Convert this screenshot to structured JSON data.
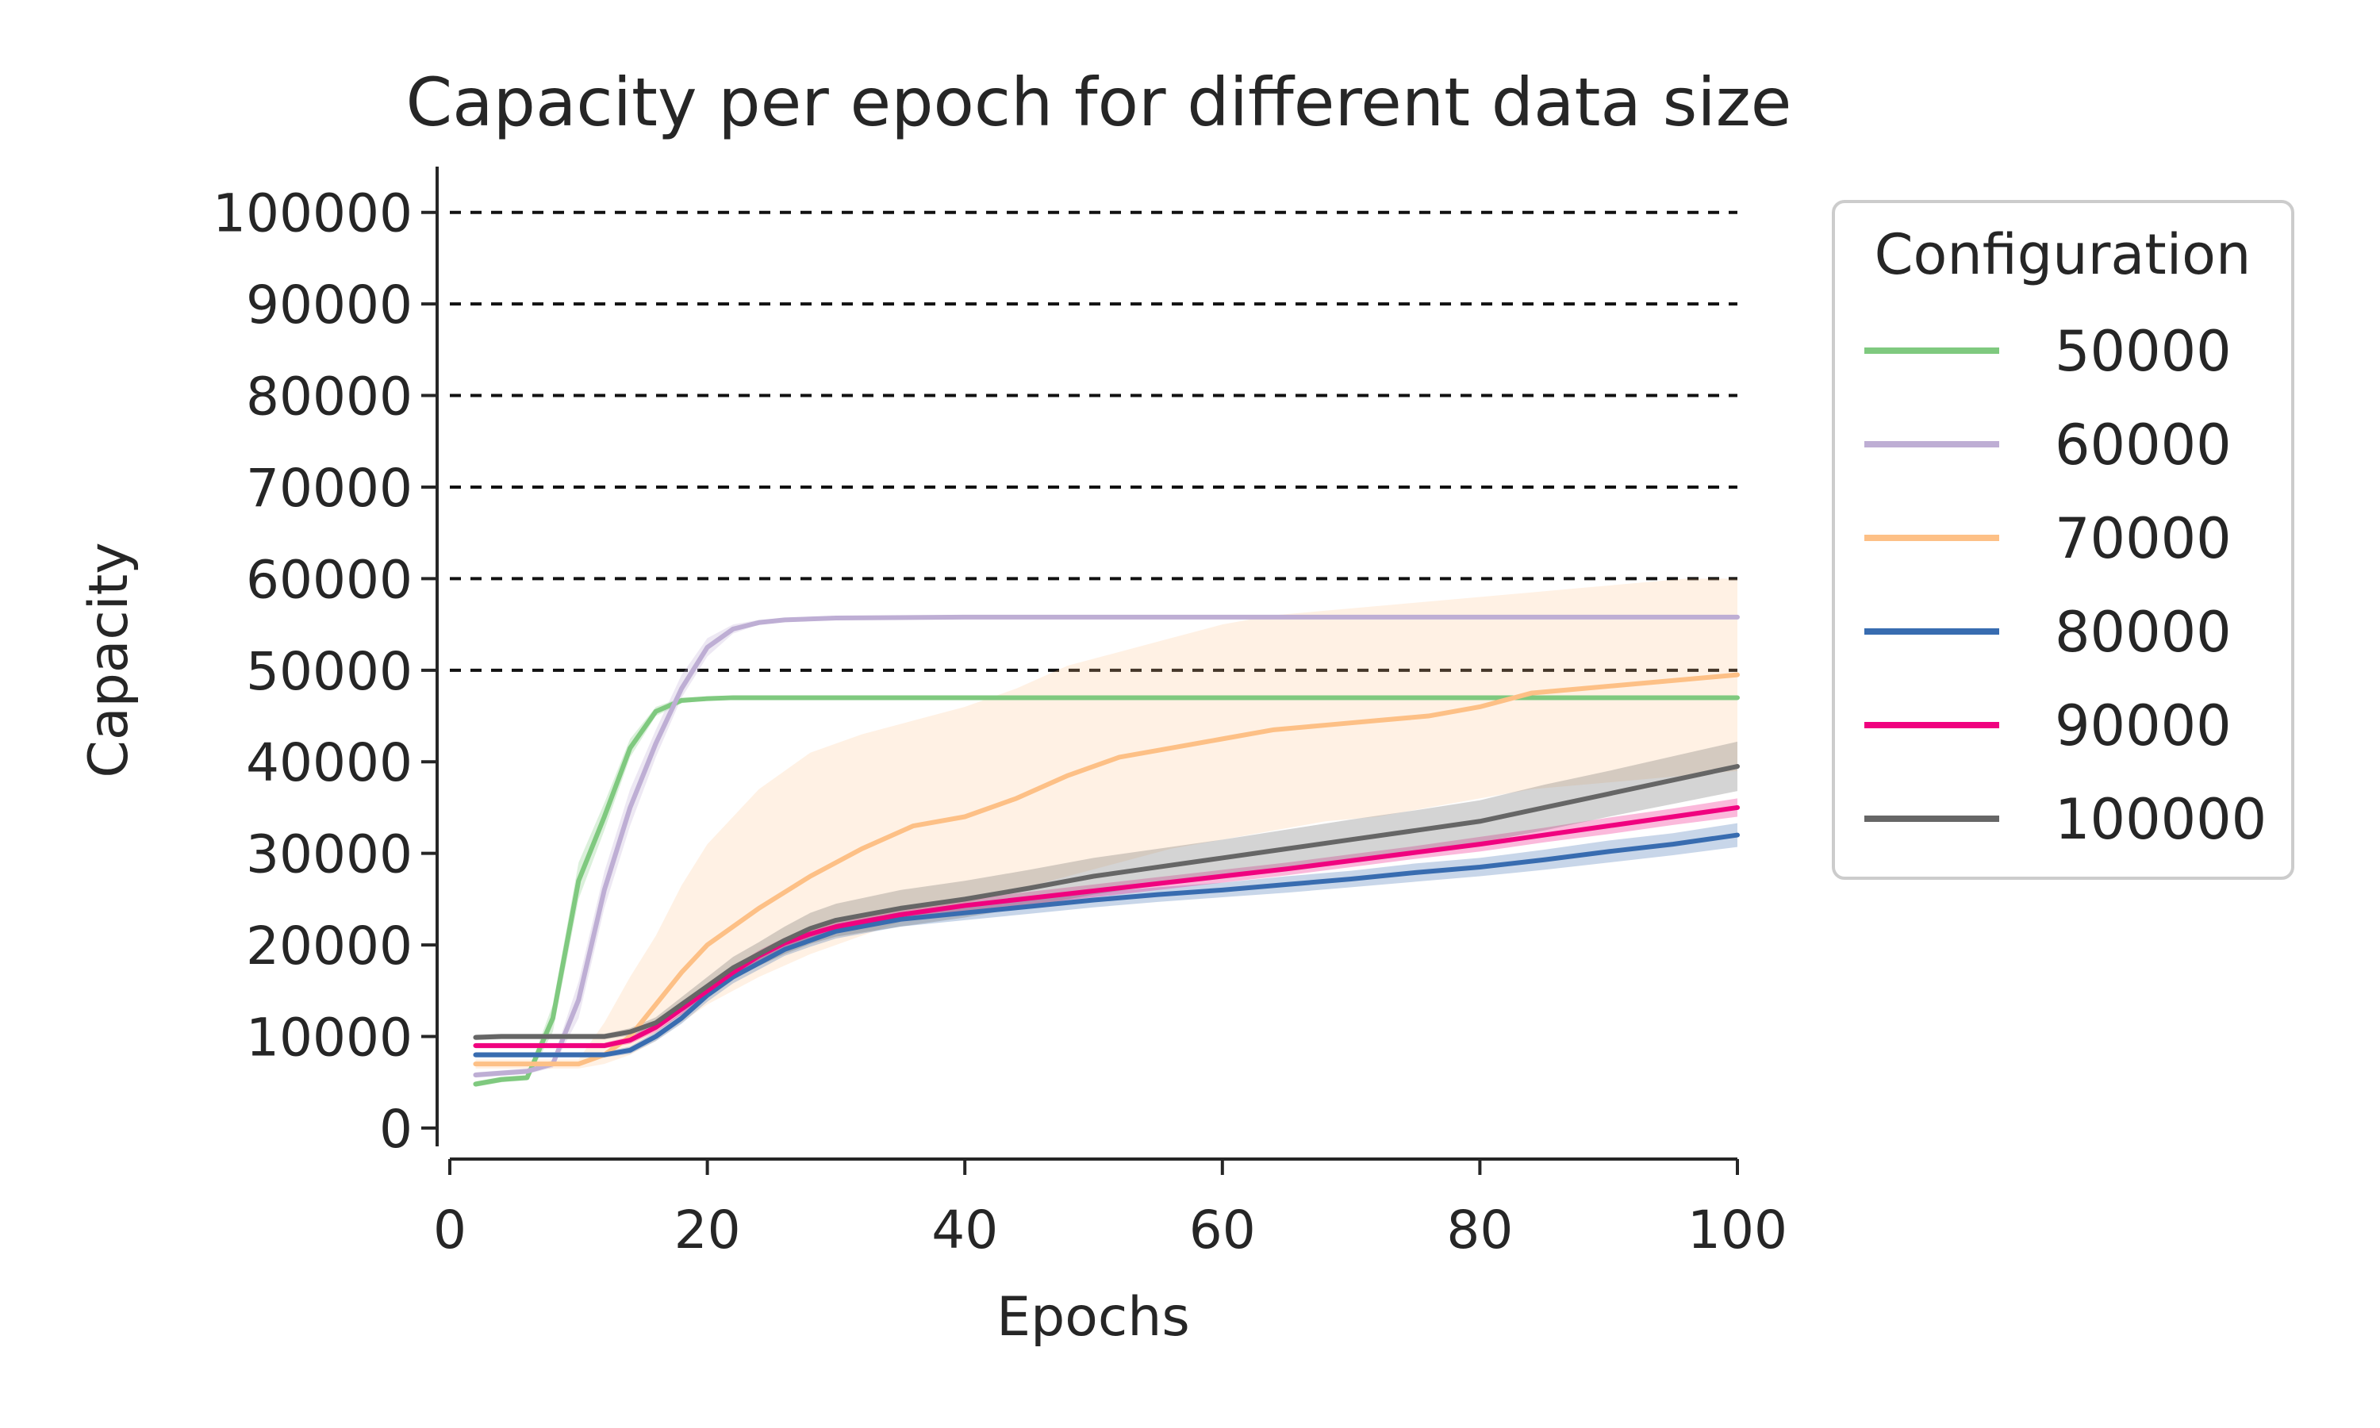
{
  "chart_data": {
    "type": "line",
    "title": "Capacity per epoch for different data size",
    "xlabel": "Epochs",
    "ylabel": "Capacity",
    "xlim": [
      0,
      100
    ],
    "ylim": [
      -2000,
      105000
    ],
    "xticks": [
      0,
      20,
      40,
      60,
      80,
      100
    ],
    "yticks": [
      0,
      10000,
      20000,
      30000,
      40000,
      50000,
      60000,
      70000,
      80000,
      90000,
      100000
    ],
    "reference_lines": [
      50000,
      60000,
      70000,
      80000,
      90000,
      100000
    ],
    "grid": false,
    "legend": {
      "title": "Configuration",
      "placement": "outside-right"
    },
    "series": [
      {
        "name": "50000",
        "color": "#7fc97f",
        "x": [
          2,
          4,
          6,
          8,
          10,
          12,
          14,
          16,
          18,
          20,
          22,
          25,
          30,
          40,
          50,
          60,
          70,
          80,
          90,
          100
        ],
        "y": [
          4800,
          5300,
          5500,
          12000,
          27000,
          34000,
          41500,
          45500,
          46700,
          46900,
          47000,
          47000,
          47000,
          47000,
          47000,
          47000,
          47000,
          47000,
          47000,
          47000
        ],
        "band_lower": [
          4500,
          5000,
          5200,
          10500,
          25000,
          32500,
          40500,
          45000,
          46400,
          46700,
          46800,
          46800,
          46800,
          46800,
          46800,
          46800,
          46800,
          46800,
          46800,
          46800
        ],
        "band_upper": [
          5100,
          5600,
          5800,
          13500,
          29000,
          35500,
          42500,
          46000,
          47000,
          47100,
          47200,
          47200,
          47200,
          47200,
          47200,
          47200,
          47200,
          47200,
          47200,
          47200
        ]
      },
      {
        "name": "60000",
        "color": "#beaed4",
        "x": [
          2,
          4,
          6,
          8,
          10,
          12,
          14,
          16,
          18,
          20,
          22,
          24,
          26,
          30,
          40,
          50,
          60,
          70,
          80,
          90,
          100
        ],
        "y": [
          5800,
          6000,
          6200,
          7000,
          14000,
          26000,
          35000,
          42000,
          48000,
          52500,
          54500,
          55200,
          55500,
          55700,
          55800,
          55800,
          55800,
          55800,
          55800,
          55800,
          55800
        ],
        "band_lower": [
          5500,
          5700,
          5900,
          6600,
          12000,
          24000,
          33000,
          40500,
          47000,
          51500,
          54000,
          55000,
          55300,
          55500,
          55600,
          55600,
          55600,
          55600,
          55600,
          55600,
          55600
        ],
        "band_upper": [
          6100,
          6300,
          6500,
          7400,
          16000,
          28000,
          37000,
          43500,
          49500,
          53500,
          55000,
          55500,
          55700,
          55900,
          56000,
          56000,
          56000,
          56000,
          56000,
          56000,
          56000
        ]
      },
      {
        "name": "70000",
        "color": "#fdc086",
        "x": [
          2,
          4,
          6,
          8,
          10,
          12,
          14,
          16,
          18,
          20,
          24,
          28,
          32,
          36,
          40,
          44,
          48,
          52,
          56,
          60,
          64,
          68,
          72,
          76,
          80,
          84,
          88,
          92,
          96,
          100
        ],
        "y": [
          7000,
          7000,
          7000,
          7000,
          7000,
          8000,
          10000,
          13500,
          17000,
          20000,
          24000,
          27500,
          30500,
          33000,
          34000,
          36000,
          38500,
          40500,
          41500,
          42500,
          43500,
          44000,
          44500,
          45000,
          46000,
          47500,
          48000,
          48500,
          49000,
          49500
        ],
        "band_lower": [
          6500,
          6500,
          6500,
          6500,
          6500,
          7000,
          8000,
          9500,
          11500,
          13500,
          16500,
          19000,
          21000,
          23000,
          24500,
          26000,
          27500,
          29000,
          30500,
          31500,
          32500,
          33500,
          34000,
          35000,
          36000,
          37000,
          37500,
          38000,
          38500,
          39000
        ],
        "band_upper": [
          7500,
          7500,
          7500,
          7500,
          7500,
          11500,
          16500,
          21000,
          26500,
          31000,
          37000,
          41000,
          43000,
          44500,
          46000,
          48000,
          50500,
          52000,
          53500,
          55000,
          56000,
          56500,
          57000,
          57500,
          58000,
          58500,
          59000,
          59500,
          60000,
          60000
        ]
      },
      {
        "name": "80000",
        "color": "#386cb0",
        "x": [
          2,
          4,
          6,
          8,
          10,
          12,
          14,
          16,
          18,
          20,
          22,
          24,
          26,
          28,
          30,
          35,
          40,
          45,
          50,
          55,
          60,
          65,
          70,
          75,
          80,
          85,
          90,
          95,
          100
        ],
        "y": [
          8000,
          8000,
          8000,
          8000,
          8000,
          8000,
          8500,
          10000,
          12000,
          14500,
          16500,
          18000,
          19500,
          20500,
          21500,
          22800,
          23500,
          24200,
          24900,
          25500,
          26000,
          26600,
          27200,
          27900,
          28500,
          29300,
          30200,
          31000,
          32000
        ],
        "band_lower": [
          7700,
          7700,
          7700,
          7700,
          7700,
          7700,
          8100,
          9500,
          11400,
          13800,
          15800,
          17300,
          18800,
          19800,
          20700,
          22000,
          22700,
          23400,
          24100,
          24700,
          25200,
          25700,
          26300,
          26900,
          27500,
          28200,
          29000,
          29800,
          30700
        ],
        "band_upper": [
          8300,
          8300,
          8300,
          8300,
          8300,
          8300,
          8900,
          10500,
          12600,
          15200,
          17200,
          18700,
          20200,
          21200,
          22300,
          23600,
          24300,
          25000,
          25700,
          26300,
          26800,
          27500,
          28100,
          28900,
          29500,
          30400,
          31400,
          32200,
          33300
        ]
      },
      {
        "name": "90000",
        "color": "#f0027f",
        "x": [
          2,
          4,
          6,
          8,
          10,
          12,
          14,
          16,
          18,
          20,
          22,
          24,
          26,
          28,
          30,
          35,
          40,
          45,
          50,
          55,
          60,
          65,
          70,
          75,
          80,
          85,
          90,
          95,
          100
        ],
        "y": [
          9000,
          9000,
          9000,
          9000,
          9000,
          9000,
          9600,
          11000,
          13000,
          15000,
          17000,
          18800,
          20200,
          21200,
          22000,
          23300,
          24300,
          25100,
          25900,
          26700,
          27500,
          28300,
          29200,
          30100,
          31000,
          32000,
          33000,
          34000,
          35000
        ],
        "band_lower": [
          8700,
          8700,
          8700,
          8700,
          8700,
          8700,
          9200,
          10500,
          12400,
          14400,
          16400,
          18200,
          19600,
          20600,
          21300,
          22600,
          23600,
          24400,
          25200,
          26000,
          26800,
          27600,
          28500,
          29400,
          30200,
          31200,
          32100,
          33100,
          34000
        ],
        "band_upper": [
          9300,
          9300,
          9300,
          9300,
          9300,
          9300,
          10000,
          11500,
          13600,
          15600,
          17600,
          19400,
          20800,
          21800,
          22700,
          24000,
          25000,
          25800,
          26600,
          27400,
          28200,
          29000,
          29900,
          30800,
          31800,
          32800,
          33900,
          34900,
          36000
        ]
      },
      {
        "name": "100000",
        "color": "#666666",
        "x": [
          2,
          4,
          6,
          8,
          10,
          12,
          14,
          16,
          18,
          20,
          22,
          24,
          26,
          28,
          30,
          35,
          40,
          45,
          50,
          55,
          60,
          65,
          70,
          75,
          80,
          85,
          90,
          95,
          100
        ],
        "y": [
          9900,
          10000,
          10000,
          10000,
          10000,
          10000,
          10500,
          11500,
          13500,
          15500,
          17500,
          19000,
          20500,
          21800,
          22700,
          24000,
          25000,
          26200,
          27500,
          28500,
          29500,
          30500,
          31500,
          32500,
          33500,
          35000,
          36500,
          38000,
          39500
        ],
        "band_lower": [
          9600,
          9700,
          9700,
          9700,
          9700,
          9700,
          10100,
          10900,
          12700,
          14500,
          16300,
          17700,
          19000,
          20100,
          20900,
          22000,
          23000,
          24200,
          25500,
          26500,
          27500,
          28400,
          29300,
          30300,
          31200,
          32500,
          34000,
          35400,
          36800
        ],
        "band_upper": [
          10200,
          10300,
          10300,
          10300,
          10300,
          10300,
          10900,
          12100,
          14300,
          16500,
          18700,
          20300,
          22000,
          23500,
          24500,
          26000,
          27000,
          28200,
          29500,
          30500,
          31500,
          32600,
          33700,
          34700,
          35800,
          37500,
          39000,
          40600,
          42200
        ]
      }
    ]
  }
}
